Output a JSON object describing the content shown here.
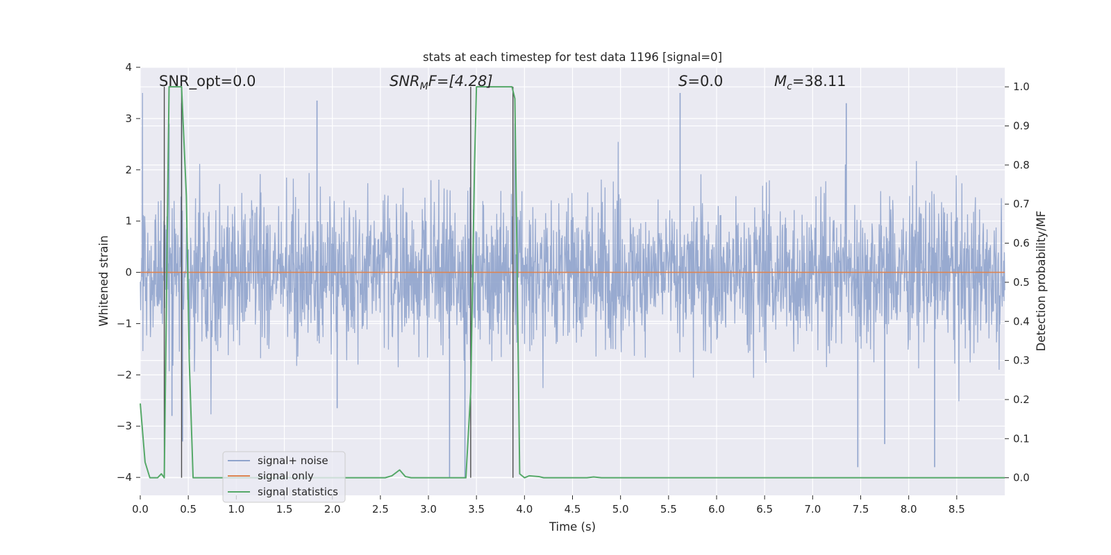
{
  "chart_data": {
    "type": "line",
    "title": "stats at each timestep for test data 1196 [signal=0]",
    "xlabel": "Time (s)",
    "ylabel": "Whitened strain",
    "y2label": "Detection probability/MF",
    "xlim": [
      0.0,
      9.0
    ],
    "ylim": [
      -4.35,
      4.0
    ],
    "y2lim": [
      -0.045,
      1.05
    ],
    "grid": true,
    "legend_position": "bottom-left",
    "x_ticks": [
      "0.0",
      "0.5",
      "1.0",
      "1.5",
      "2.0",
      "2.5",
      "3.0",
      "3.5",
      "4.0",
      "4.5",
      "5.0",
      "5.5",
      "6.0",
      "6.5",
      "7.0",
      "7.5",
      "8.0",
      "8.5"
    ],
    "y_ticks": [
      "4",
      "3",
      "2",
      "1",
      "0",
      "−1",
      "−2",
      "−3",
      "−4"
    ],
    "y2_ticks": [
      "1.0",
      "0.9",
      "0.8",
      "0.7",
      "0.6",
      "0.5",
      "0.4",
      "0.3",
      "0.2",
      "0.1",
      "0.0"
    ],
    "annotations": {
      "snr_opt": "SNR_opt=0.0",
      "snr_mf_name": "SNR",
      "snr_mf_sub": "M",
      "snr_mf_rest": "F=[4.28]",
      "s_name": "S",
      "s_rest": "=0.0",
      "mc_name": "M",
      "mc_sub": "c",
      "mc_rest": "=38.11"
    },
    "series": [
      {
        "name": "signal+ noise",
        "color": "#8fa3cc",
        "description": "whitened noise, roughly within ±2 with spikes to ±3.5",
        "amplitude_envelope": [
          -3.8,
          3.5
        ],
        "spikes": [
          [
            0.3,
            2.9
          ],
          [
            0.33,
            -2.8
          ],
          [
            0.43,
            3.3
          ],
          [
            0.44,
            -3.3
          ],
          [
            1.84,
            3.35
          ],
          [
            2.05,
            -2.65
          ],
          [
            3.22,
            -4.0
          ],
          [
            3.38,
            -4.0
          ],
          [
            5.62,
            3.5
          ],
          [
            7.47,
            -3.8
          ],
          [
            7.75,
            -3.35
          ],
          [
            8.27,
            -3.8
          ],
          [
            7.35,
            3.3
          ]
        ]
      },
      {
        "name": "signal only",
        "color": "#dd8452",
        "x": [
          0.0,
          9.0
        ],
        "y": [
          0.0,
          0.0
        ]
      },
      {
        "name": "signal statistics",
        "color": "#55a868",
        "axis": "right",
        "x": [
          0.0,
          0.02,
          0.05,
          0.1,
          0.18,
          0.22,
          0.25,
          0.3,
          0.33,
          0.4,
          0.43,
          0.48,
          0.51,
          0.55,
          0.6,
          1.0,
          1.5,
          2.0,
          2.55,
          2.62,
          2.7,
          2.76,
          2.82,
          3.0,
          3.39,
          3.44,
          3.48,
          3.5,
          3.7,
          3.8,
          3.87,
          3.9,
          3.92,
          3.95,
          4.0,
          4.05,
          4.15,
          4.2,
          4.5,
          4.65,
          4.72,
          4.8,
          5.0,
          6.0,
          7.0,
          8.0,
          9.0
        ],
        "y": [
          0.19,
          0.13,
          0.04,
          0.0,
          0.0,
          0.01,
          0.0,
          1.0,
          1.0,
          1.0,
          1.0,
          0.72,
          0.3,
          0.0,
          0.0,
          0.0,
          0.0,
          0.0,
          0.0,
          0.005,
          0.02,
          0.003,
          0.0,
          0.0,
          0.0,
          0.22,
          0.8,
          1.0,
          1.0,
          1.0,
          1.0,
          0.97,
          0.6,
          0.01,
          0.0,
          0.005,
          0.003,
          0.0,
          0.0,
          0.0,
          0.002,
          0.0,
          0.0,
          0.0,
          0.0,
          0.0,
          0.0
        ]
      }
    ],
    "vertical_markers": {
      "color": "#4c4c4c",
      "x": [
        0.25,
        0.43,
        3.44,
        3.88
      ]
    }
  }
}
